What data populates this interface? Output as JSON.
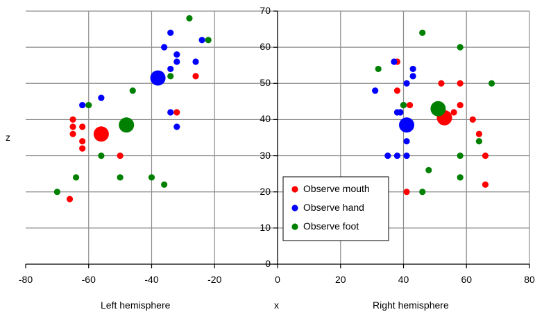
{
  "chart_data": {
    "type": "scatter",
    "xlabel": "x",
    "ylabel": "z",
    "xlim": [
      -80,
      80
    ],
    "ylim": [
      0,
      70
    ],
    "x_ticks": [
      "-80",
      "-60",
      "-40",
      "-20",
      "0",
      "20",
      "40",
      "60",
      "80"
    ],
    "y_ticks": [
      "0",
      "10",
      "20",
      "30",
      "40",
      "50",
      "60",
      "70"
    ],
    "grid": true,
    "legend_position": "bottom-center",
    "group_labels": {
      "left": "Left hemisphere",
      "right": "Right hemisphere"
    },
    "series": [
      {
        "name": "Observe mouth",
        "color": "#ff0000",
        "points": [
          [
            -65,
            40
          ],
          [
            -65,
            38
          ],
          [
            -62,
            38
          ],
          [
            -65,
            36
          ],
          [
            -62,
            34
          ],
          [
            -62,
            32
          ],
          [
            -66,
            18
          ],
          [
            -50,
            30
          ],
          [
            -32,
            42
          ],
          [
            -26,
            52
          ],
          [
            38,
            56
          ],
          [
            38,
            48
          ],
          [
            42,
            44
          ],
          [
            41,
            20
          ],
          [
            52,
            50
          ],
          [
            58,
            50
          ],
          [
            58,
            44
          ],
          [
            56,
            42
          ],
          [
            62,
            40
          ],
          [
            64,
            36
          ],
          [
            66,
            30
          ],
          [
            66,
            22
          ]
        ],
        "means": [
          [
            -56,
            36
          ],
          [
            53,
            40.5
          ]
        ]
      },
      {
        "name": "Observe hand",
        "color": "#0000ff",
        "points": [
          [
            -34,
            64
          ],
          [
            -36,
            60
          ],
          [
            -32,
            58
          ],
          [
            -32,
            56
          ],
          [
            -34,
            54
          ],
          [
            -26,
            56
          ],
          [
            -24,
            62
          ],
          [
            -56,
            46
          ],
          [
            -62,
            44
          ],
          [
            -34,
            42
          ],
          [
            -32,
            38
          ],
          [
            37,
            56
          ],
          [
            43,
            54
          ],
          [
            43,
            52
          ],
          [
            41,
            50
          ],
          [
            31,
            48
          ],
          [
            40,
            44
          ],
          [
            39,
            42
          ],
          [
            38,
            42
          ],
          [
            41,
            34
          ],
          [
            35,
            30
          ],
          [
            38,
            30
          ],
          [
            41,
            30
          ]
        ],
        "means": [
          [
            -38,
            51.5
          ],
          [
            41,
            38.5
          ]
        ]
      },
      {
        "name": "Observe foot",
        "color": "#008000",
        "points": [
          [
            -28,
            68
          ],
          [
            -22,
            62
          ],
          [
            -34,
            52
          ],
          [
            -46,
            48
          ],
          [
            -60,
            44
          ],
          [
            -56,
            30
          ],
          [
            -64,
            24
          ],
          [
            -50,
            24
          ],
          [
            -40,
            24
          ],
          [
            -36,
            22
          ],
          [
            -70,
            20
          ],
          [
            46,
            64
          ],
          [
            58,
            60
          ],
          [
            32,
            54
          ],
          [
            68,
            50
          ],
          [
            40,
            44
          ],
          [
            64,
            34
          ],
          [
            58,
            30
          ],
          [
            48,
            26
          ],
          [
            58,
            24
          ],
          [
            46,
            20
          ]
        ],
        "means": [
          [
            -48,
            38.5
          ],
          [
            51,
            43
          ]
        ]
      }
    ]
  }
}
